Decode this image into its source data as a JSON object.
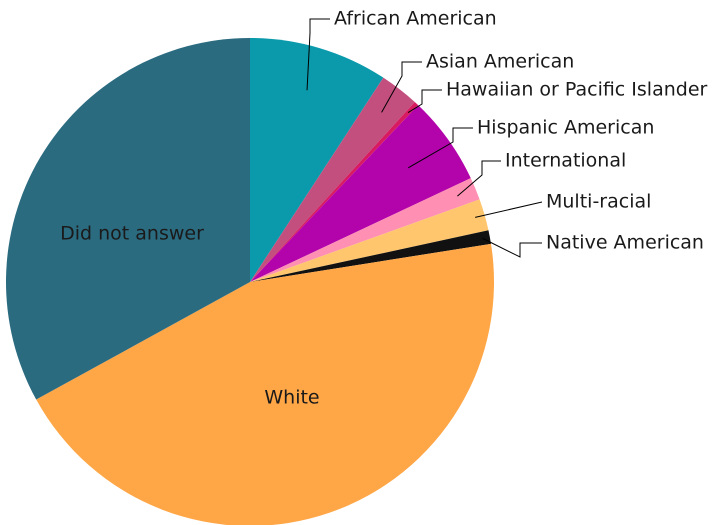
{
  "chart_data": {
    "type": "pie",
    "title": "",
    "legend": "none",
    "slices": [
      {
        "label": "African American",
        "value": 9.2,
        "color": "#0a9aab"
      },
      {
        "label": "Asian American",
        "value": 2.6,
        "color": "#c34f7f"
      },
      {
        "label": "Hawaiian or Pacific Islander",
        "value": 0.3,
        "color": "#d81b60"
      },
      {
        "label": "Hispanic American",
        "value": 5.9,
        "color": "#b204aa"
      },
      {
        "label": "International",
        "value": 1.5,
        "color": "#ff8fb3"
      },
      {
        "label": "Multi-racial",
        "value": 2.1,
        "color": "#ffc66d"
      },
      {
        "label": "Native American",
        "value": 0.9,
        "color": "#111111"
      },
      {
        "label": "White",
        "value": 44.5,
        "color": "#ffa646"
      },
      {
        "label": "Did not answer",
        "value": 33.0,
        "color": "#2b6b80"
      }
    ]
  }
}
